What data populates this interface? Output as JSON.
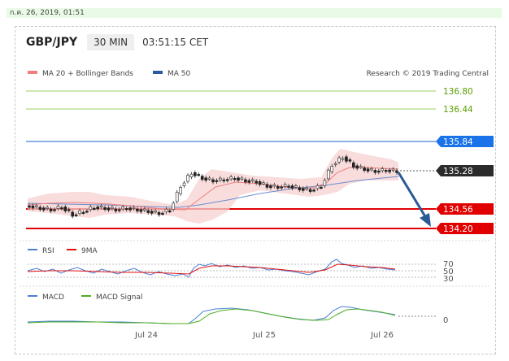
{
  "date_bar": "ก.ค. 26, 2019, 01:51",
  "header": {
    "pair": "GBP/JPY",
    "timeframe": "30 MIN",
    "time": "03:51:15 CET"
  },
  "legend": {
    "ma20": "MA 20 + Bollinger Bands",
    "ma50": "MA 50",
    "credit": "Research © 2019 Trading Central"
  },
  "price_levels": [
    {
      "label": "136.80",
      "color": "#5aa000",
      "kind": "text"
    },
    {
      "label": "136.44",
      "color": "#5aa000",
      "kind": "text"
    },
    {
      "label": "135.84",
      "color": "#1a73e8",
      "kind": "tag"
    },
    {
      "label": "135.28",
      "color": "#222222",
      "kind": "tag"
    },
    {
      "label": "134.56",
      "color": "#e00000",
      "kind": "tag"
    },
    {
      "label": "134.20",
      "color": "#e00000",
      "kind": "tag"
    }
  ],
  "rsi": {
    "label1": "RSI",
    "label2": "9MA",
    "levels": [
      "70",
      "50",
      "30"
    ]
  },
  "macd": {
    "label1": "MACD",
    "label2": "MACD Signal",
    "zero": "0"
  },
  "xaxis": [
    "Jul 24",
    "Jul 25",
    "Jul 26"
  ],
  "colors": {
    "ma20": "#f08080",
    "ma50": "#2c5aa0",
    "rsi": "#4a7fd6",
    "rsi_ma": "#e01010",
    "macd": "#4a7fd6",
    "signal": "#4caf20",
    "arrow": "#2a5a96"
  },
  "chart_data": {
    "type": "candlestick",
    "x": [
      "Jul 24",
      "Jul 25",
      "Jul 26"
    ],
    "resistance": [
      136.8,
      136.44,
      135.84
    ],
    "last": 135.28,
    "support": [
      134.56,
      134.2
    ],
    "close_approx": [
      134.62,
      134.58,
      134.55,
      134.6,
      134.45,
      134.52,
      134.6,
      134.58,
      134.55,
      134.58,
      134.55,
      134.52,
      134.48,
      134.55,
      135.0,
      135.25,
      135.15,
      135.1,
      135.12,
      135.15,
      135.1,
      135.08,
      135.0,
      134.98,
      135.0,
      134.95,
      134.92,
      135.0,
      135.4,
      135.55,
      135.38,
      135.32,
      135.28,
      135.3,
      135.28
    ]
  }
}
